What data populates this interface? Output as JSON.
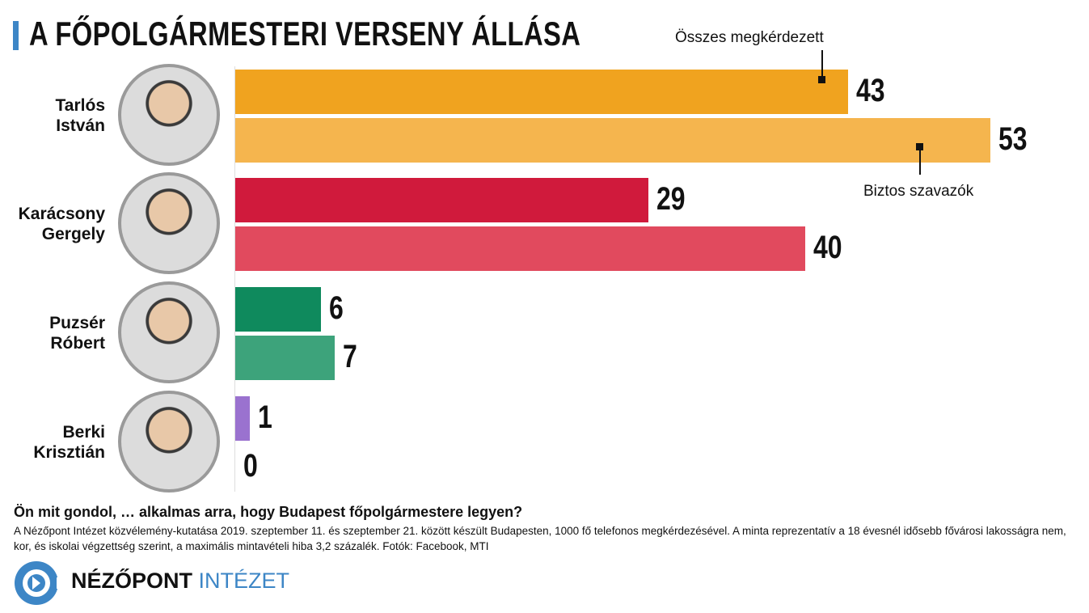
{
  "title": "A FŐPOLGÁRMESTERI VERSENY ÁLLÁSA",
  "chart_data": {
    "type": "bar",
    "orientation": "horizontal",
    "title": "A FŐPOLGÁRMESTERI VERSENY ÁLLÁSA",
    "categories": [
      "Tarlós István",
      "Karácsony Gergely",
      "Puzsér Róbert",
      "Berki Krisztián"
    ],
    "category_lines": [
      [
        "Tarlós",
        "István"
      ],
      [
        "Karácsony",
        "Gergely"
      ],
      [
        "Puzsér",
        "Róbert"
      ],
      [
        "Berki",
        "Krisztián"
      ]
    ],
    "series": [
      {
        "name": "Összes megkérdezett",
        "values": [
          43,
          29,
          6,
          1
        ]
      },
      {
        "name": "Biztos szavazók",
        "values": [
          53,
          40,
          7,
          0
        ]
      }
    ],
    "colors": [
      [
        "#f0a31f",
        "#f5b54e"
      ],
      [
        "#d01a3c",
        "#e14a5e"
      ],
      [
        "#0f8a5d",
        "#3da37b"
      ],
      [
        "#9a72cf",
        "#b596e0"
      ]
    ],
    "xlim": [
      0,
      53
    ],
    "grid": false
  },
  "question": "Ön mit gondol, … alkalmas arra, hogy Budapest főpolgármestere legyen?",
  "note": "A Nézőpont Intézet közvélemény-kutatása 2019. szeptember 11. és szeptember 21. között készült Budapesten, 1000 fő telefonos megkérdezésével. A minta reprezentatív a 18 évesnél idősebb fővárosi lakosságra nem, kor, és iskolai végzettség szerint, a maximális mintavételi hiba 3,2 százalék. Fotók: Facebook, MTI",
  "logo": {
    "part1": "NÉZŐPONT",
    "part2": "INTÉZET",
    "color": "#3d86c6"
  }
}
